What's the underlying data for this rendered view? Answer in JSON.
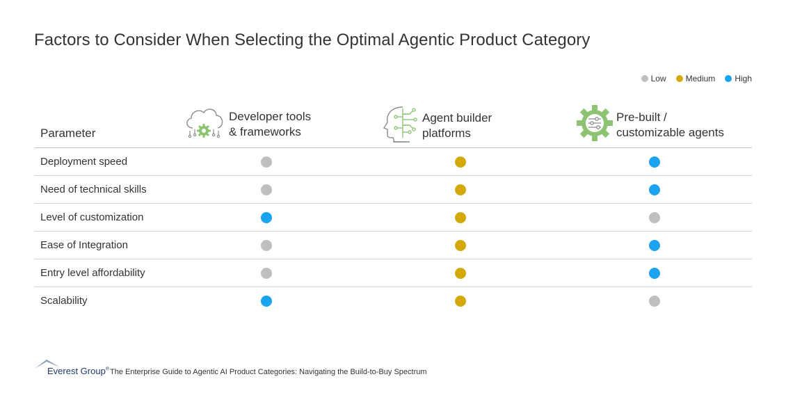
{
  "title": "Factors to Consider When Selecting the Optimal Agentic Product Category",
  "legend": [
    {
      "label": "Low",
      "color": "#bfbfbf"
    },
    {
      "label": "Medium",
      "color": "#d4a90b"
    },
    {
      "label": "High",
      "color": "#1aa3ef"
    }
  ],
  "icons": {
    "col1": "cloud-gear-icon",
    "col2": "ai-head-icon",
    "col3": "gear-sliders-icon"
  },
  "chart_data": {
    "type": "table",
    "parameter_header": "Parameter",
    "columns": [
      {
        "line1": "Developer tools",
        "line2": "& frameworks"
      },
      {
        "line1": "Agent builder",
        "line2": "platforms"
      },
      {
        "line1": "Pre-built /",
        "line2": "customizable agents"
      }
    ],
    "levels": {
      "Low": "#bfbfbf",
      "Medium": "#d4a90b",
      "High": "#1aa3ef"
    },
    "rows": [
      {
        "parameter": "Deployment speed",
        "values": [
          "Low",
          "Medium",
          "High"
        ]
      },
      {
        "parameter": "Need of technical skills",
        "values": [
          "Low",
          "Medium",
          "High"
        ]
      },
      {
        "parameter": "Level of customization",
        "values": [
          "High",
          "Medium",
          "Low"
        ]
      },
      {
        "parameter": "Ease of Integration",
        "values": [
          "Low",
          "Medium",
          "High"
        ]
      },
      {
        "parameter": "Entry level affordability",
        "values": [
          "Low",
          "Medium",
          "High"
        ]
      },
      {
        "parameter": "Scalability",
        "values": [
          "High",
          "Medium",
          "Low"
        ]
      }
    ]
  },
  "footer": {
    "brand": "Everest Group",
    "registered": "®",
    "source": "The Enterprise Guide to Agentic AI Product Categories: Navigating the Build-to-Buy Spectrum"
  }
}
